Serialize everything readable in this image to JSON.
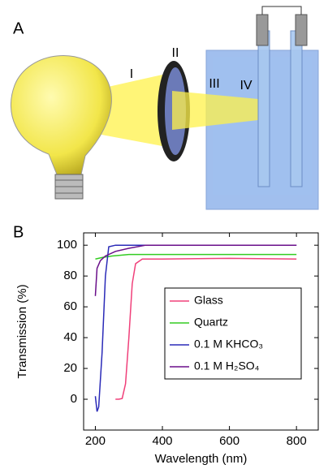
{
  "panel_labels": [
    "A",
    "B"
  ],
  "diagram": {
    "labels": [
      "I",
      "II",
      "III",
      "IV"
    ]
  },
  "chart_data": {
    "type": "line",
    "x_label": "Wavelength (nm)",
    "y_label": "Transmission (%)",
    "xlim": [
      165,
      865
    ],
    "ylim": [
      -20,
      108
    ],
    "xticks": [
      200,
      400,
      600,
      800
    ],
    "yticks": [
      0,
      20,
      40,
      60,
      80,
      100
    ],
    "legend": "center-right",
    "series": [
      {
        "name": "Glass",
        "color": "#f0407a",
        "x": [
          260,
          270,
          280,
          290,
          300,
          310,
          320,
          340,
          400,
          600,
          800
        ],
        "values": [
          0,
          0,
          0.5,
          10,
          40,
          75,
          88,
          91,
          91,
          91.5,
          91
        ]
      },
      {
        "name": "Quartz",
        "color": "#33cc22",
        "x": [
          200,
          220,
          250,
          300,
          400,
          600,
          800
        ],
        "values": [
          91,
          92,
          93,
          94,
          94,
          94,
          94
        ]
      },
      {
        "name": "0.1 M KHCO₃",
        "color": "#2a2ab8",
        "x": [
          200,
          205,
          210,
          220,
          230,
          240,
          260,
          400,
          800
        ],
        "values": [
          2,
          -8,
          -5,
          30,
          80,
          99,
          100,
          100,
          100
        ]
      },
      {
        "name": "0.1 M H₂SO₄",
        "color": "#6a0f8a",
        "x": [
          200,
          205,
          215,
          230,
          260,
          300,
          350,
          400,
          800
        ],
        "values": [
          67,
          85,
          90,
          93,
          96,
          98,
          100,
          100,
          100
        ]
      }
    ]
  }
}
